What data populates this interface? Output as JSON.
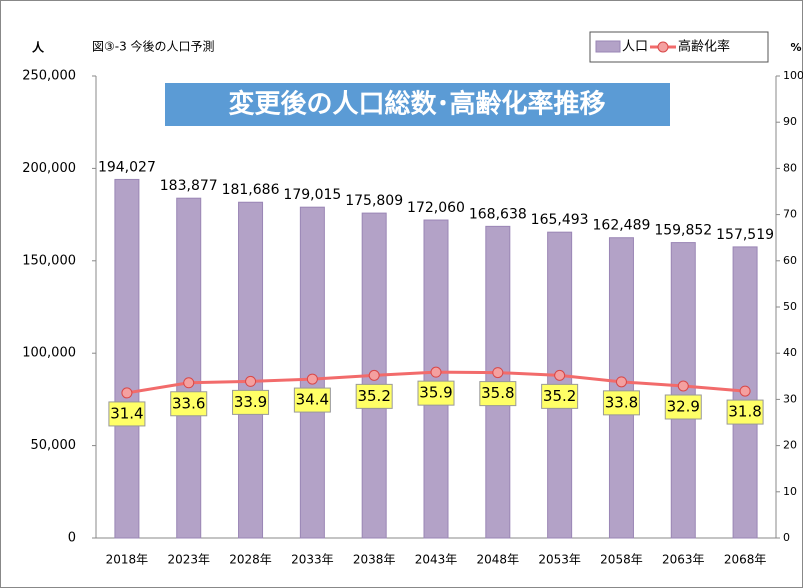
{
  "chart_data": {
    "type": "combo",
    "title": "図③-3 今後の人口予測",
    "banner": "変更後の人口総数･高齢化率推移",
    "y_label": "人",
    "y2_label": "%",
    "categories": [
      "2018年",
      "2023年",
      "2028年",
      "2033年",
      "2038年",
      "2043年",
      "2048年",
      "2053年",
      "2058年",
      "2063年",
      "2068年"
    ],
    "series": [
      {
        "name": "人口",
        "type": "bar",
        "color": "#b3a2c7",
        "values": [
          194027,
          183877,
          181686,
          179015,
          175809,
          172060,
          168638,
          165493,
          162489,
          159852,
          157519
        ],
        "value_labels": [
          "194,027",
          "183,877",
          "181,686",
          "179,015",
          "175,809",
          "172,060",
          "168,638",
          "165,493",
          "162,489",
          "159,852",
          "157,519"
        ]
      },
      {
        "name": "高齢化率",
        "type": "line",
        "axis": "y2",
        "color": "#f26b6b",
        "values": [
          31.4,
          33.6,
          33.9,
          34.4,
          35.2,
          35.9,
          35.8,
          35.2,
          33.8,
          32.9,
          31.8
        ]
      }
    ],
    "ylim": [
      0,
      250000
    ],
    "yticks": [
      0,
      {
        "value": 50000,
        "label": "50,000"
      },
      {
        "value": 100000,
        "label": "100,000"
      },
      {
        "value": 150000,
        "label": "150,000"
      },
      {
        "value": 200000,
        "label": "200,000"
      },
      {
        "value": 250000,
        "label": "250,000"
      }
    ],
    "y2lim": [
      0,
      100
    ],
    "y2ticks": [
      0,
      10,
      20,
      30,
      40,
      50,
      60,
      70,
      80,
      90,
      100
    ],
    "legend": "top-right"
  }
}
